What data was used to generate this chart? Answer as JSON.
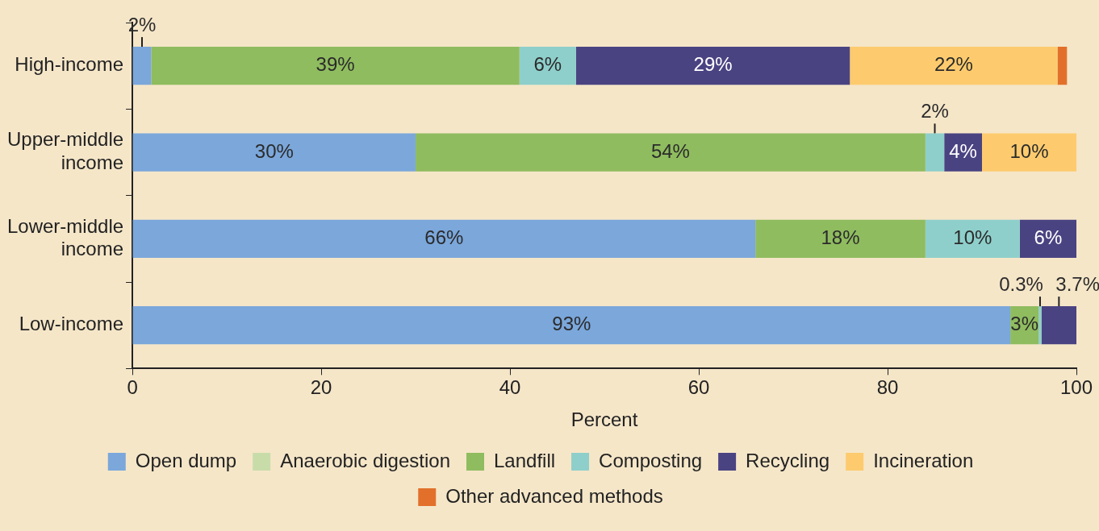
{
  "chart_data": {
    "type": "bar",
    "orientation": "horizontal",
    "stacked": true,
    "categories": [
      "High-income",
      "Upper-middle income",
      "Lower-middle income",
      "Low-income"
    ],
    "series": [
      {
        "name": "Open dump",
        "color": "#7ba7db",
        "values": [
          2,
          30,
          66,
          93
        ],
        "value_labels": [
          "2%",
          "30%",
          "66%",
          "93%"
        ]
      },
      {
        "name": "Anaerobic digestion",
        "color": "#c8dcaa",
        "values": [
          null,
          null,
          null,
          null
        ]
      },
      {
        "name": "Landfill",
        "color": "#8fbc5f",
        "values": [
          39,
          54,
          18,
          3
        ],
        "value_labels": [
          "39%",
          "54%",
          "18%",
          "3%"
        ]
      },
      {
        "name": "Composting",
        "color": "#8ecfcb",
        "values": [
          6,
          2,
          10,
          0.3
        ],
        "value_labels": [
          "6%",
          "2%",
          "10%",
          "0.3%"
        ]
      },
      {
        "name": "Recycling",
        "color": "#4a4382",
        "values": [
          29,
          4,
          6,
          3.7
        ],
        "value_labels": [
          "29%",
          "4%",
          "6%",
          "3.7%"
        ]
      },
      {
        "name": "Incineration",
        "color": "#fdcb6e",
        "values": [
          22,
          10,
          null,
          null
        ],
        "value_labels": [
          "22%",
          "10%",
          null,
          null
        ]
      },
      {
        "name": "Other advanced methods",
        "color": "#e2702a",
        "values": [
          1,
          null,
          null,
          null
        ]
      }
    ],
    "xlabel": "Percent",
    "xlim": [
      0,
      100
    ],
    "xticks": [
      0,
      20,
      40,
      60,
      80,
      100
    ],
    "grid": false,
    "legend": "bottom"
  }
}
